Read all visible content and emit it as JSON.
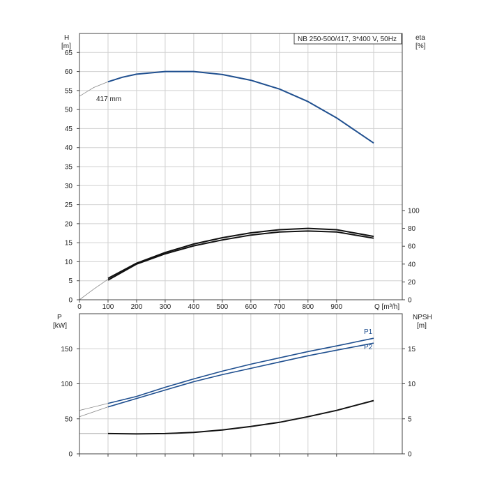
{
  "chart_data": [
    {
      "type": "line",
      "title": "NB 250-500/417, 3*400 V, 50Hz",
      "xlabel": "Q [m³/h]",
      "ylabel": "H\n[m]",
      "y2label": "eta\n[%]",
      "xlim": [
        0,
        1130
      ],
      "ylim": [
        0,
        70
      ],
      "y2lim": [
        0,
        100
      ],
      "xticks": [
        0,
        100,
        200,
        300,
        400,
        500,
        600,
        700,
        800,
        900
      ],
      "yticks": [
        0,
        5,
        10,
        15,
        20,
        25,
        30,
        35,
        40,
        45,
        50,
        55,
        60,
        65
      ],
      "y2ticks": [
        0,
        20,
        40,
        60,
        80,
        100
      ],
      "grid": true,
      "annotations": [
        "417 mm"
      ],
      "series": [
        {
          "axis": "left",
          "color": "#1f4f8f",
          "x": [
            100,
            150,
            200,
            300,
            400,
            500,
            600,
            700,
            800,
            900,
            1030
          ],
          "y": [
            57.3,
            58.5,
            59.3,
            60.0,
            60.0,
            59.2,
            57.7,
            55.4,
            52.1,
            47.8,
            41.2
          ]
        },
        {
          "axis": "right",
          "color": "#111111",
          "x": [
            100,
            200,
            300,
            400,
            500,
            600,
            700,
            800,
            900,
            1030
          ],
          "y": [
            24,
            41,
            53,
            62.5,
            69.5,
            75,
            78.5,
            80,
            78.5,
            71
          ]
        },
        {
          "axis": "right",
          "color": "#111111",
          "x": [
            100,
            200,
            300,
            400,
            500,
            600,
            700,
            800,
            900,
            1030
          ],
          "y": [
            22,
            40,
            51.5,
            60.5,
            67,
            72.5,
            76,
            77,
            76,
            69
          ]
        }
      ]
    },
    {
      "type": "line",
      "xlabel": "",
      "ylabel": "P\n[kW]",
      "y2label": "NPSH\n[m]",
      "xlim": [
        0,
        1130
      ],
      "ylim": [
        0,
        200
      ],
      "y2lim": [
        0,
        20
      ],
      "yticks": [
        0,
        50,
        100,
        150
      ],
      "y2ticks": [
        0,
        5,
        10,
        15
      ],
      "grid": true,
      "series": [
        {
          "name": "P1",
          "axis": "left",
          "color": "#1f4f8f",
          "x": [
            100,
            200,
            300,
            400,
            500,
            600,
            700,
            800,
            900,
            1030
          ],
          "y": [
            72,
            82,
            95,
            107,
            118,
            128,
            137,
            146,
            154,
            165
          ]
        },
        {
          "name": "P2",
          "axis": "left",
          "color": "#1f4f8f",
          "x": [
            100,
            200,
            300,
            400,
            500,
            600,
            700,
            800,
            900,
            1030
          ],
          "y": [
            67,
            79,
            91,
            103,
            113,
            122,
            131,
            140,
            148,
            158
          ]
        },
        {
          "axis": "right",
          "color": "#111111",
          "x": [
            100,
            200,
            300,
            400,
            500,
            600,
            700,
            800,
            900,
            1030
          ],
          "y": [
            2.9,
            2.85,
            2.9,
            3.05,
            3.4,
            3.9,
            4.5,
            5.3,
            6.2,
            7.6
          ]
        }
      ]
    }
  ]
}
